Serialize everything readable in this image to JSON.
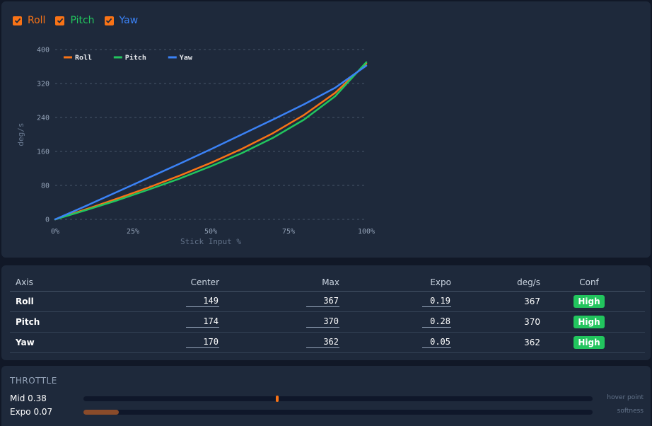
{
  "toggles": [
    {
      "label": "Roll",
      "checked": true,
      "color": "#f97316"
    },
    {
      "label": "Pitch",
      "checked": true,
      "color": "#22c55e"
    },
    {
      "label": "Yaw",
      "checked": true,
      "color": "#3b82f6"
    }
  ],
  "chart_data": {
    "type": "line",
    "xlabel": "Stick Input %",
    "ylabel": "deg/s",
    "x_ticks": [
      "0%",
      "25%",
      "50%",
      "75%",
      "100%"
    ],
    "y_ticks": [
      "0",
      "80",
      "160",
      "240",
      "320",
      "400"
    ],
    "xlim": [
      0,
      100
    ],
    "ylim": [
      0,
      400
    ],
    "grid": true,
    "legend_position": "top-left",
    "x": [
      0,
      10,
      20,
      30,
      40,
      50,
      60,
      70,
      80,
      90,
      100
    ],
    "series": [
      {
        "name": "Roll",
        "color": "#f97316",
        "values": [
          0,
          24,
          49,
          75,
          103,
          133,
          166,
          203,
          246,
          298,
          367
        ]
      },
      {
        "name": "Pitch",
        "color": "#22c55e",
        "values": [
          0,
          22,
          45,
          70,
          96,
          125,
          156,
          192,
          235,
          290,
          370
        ]
      },
      {
        "name": "Yaw",
        "color": "#3b82f6",
        "values": [
          0,
          32,
          65,
          98,
          131,
          165,
          200,
          235,
          271,
          310,
          362
        ]
      }
    ]
  },
  "table": {
    "headers": [
      "Axis",
      "Center",
      "Max",
      "Expo",
      "deg/s",
      "Conf"
    ],
    "rows": [
      {
        "axis": "Roll",
        "center": "149",
        "max": "367",
        "expo": "0.19",
        "degs": "367",
        "conf": "High"
      },
      {
        "axis": "Pitch",
        "center": "174",
        "max": "370",
        "expo": "0.28",
        "degs": "370",
        "conf": "High"
      },
      {
        "axis": "Yaw",
        "center": "170",
        "max": "362",
        "expo": "0.05",
        "degs": "362",
        "conf": "High"
      }
    ]
  },
  "throttle": {
    "title": "THROTTLE",
    "mid": {
      "label": "Mid 0.38",
      "value": 0.38,
      "hint": "hover point"
    },
    "expo": {
      "label": "Expo 0.07",
      "value": 0.07,
      "hint": "softness"
    }
  }
}
